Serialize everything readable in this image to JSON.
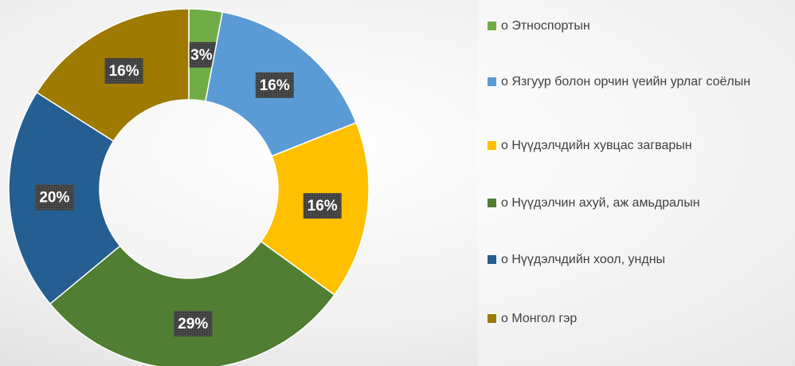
{
  "chart_data": {
    "type": "donut",
    "categories": [
      "о   Этноспортын",
      "о   Язгуур болон орчин үеийн урлаг соёлын",
      "о   Нүүдэлчдийн хувцас загварын",
      "о   Нүүдэлчин ахуй, аж амьдралын",
      "о   Нүүдэлчдийн хоол, ундны",
      "о   Монгол гэр"
    ],
    "values": [
      3,
      16,
      16,
      29,
      20,
      16
    ],
    "value_labels": [
      "3%",
      "16%",
      "16%",
      "29%",
      "20%",
      "16%"
    ],
    "colors": [
      "#70ad47",
      "#5b9bd5",
      "#ffc000",
      "#507e32",
      "#255e91",
      "#9e7a00"
    ],
    "legend": "right"
  }
}
